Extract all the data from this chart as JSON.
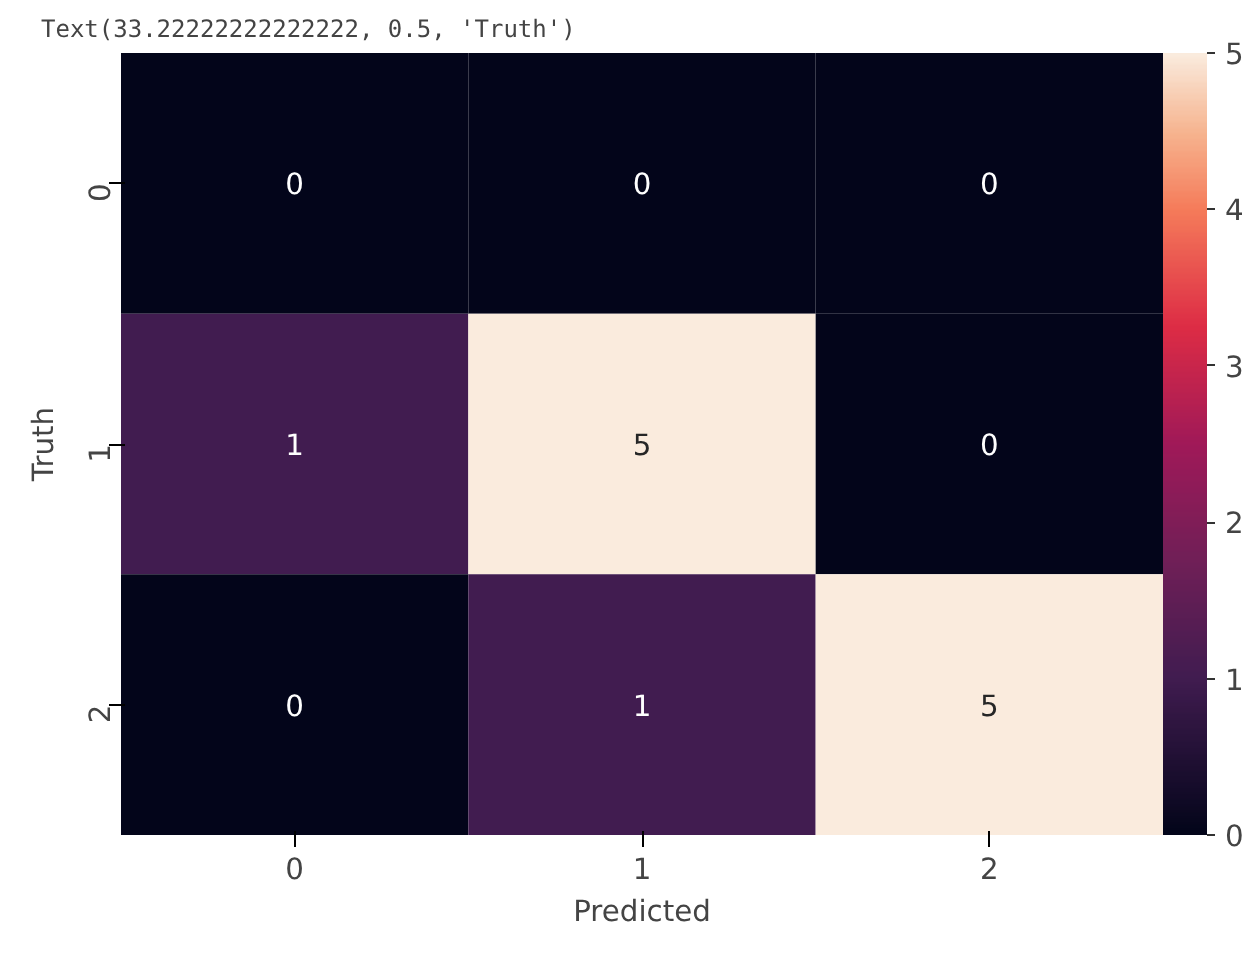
{
  "chart_data": {
    "type": "heatmap",
    "annotations": [
      "Text(33.22222222222222, 0.5, 'Truth')"
    ],
    "xlabel": "Predicted",
    "ylabel": "Truth",
    "categories": [
      "0",
      "1",
      "2"
    ],
    "y_categories": [
      "0",
      "1",
      "2"
    ],
    "cells": [
      [
        0,
        0,
        0
      ],
      [
        1,
        5,
        0
      ],
      [
        0,
        1,
        5
      ]
    ],
    "data_labels": true,
    "clim": [
      0,
      5
    ],
    "cticks": [
      0,
      1,
      2,
      3,
      4,
      5
    ]
  }
}
